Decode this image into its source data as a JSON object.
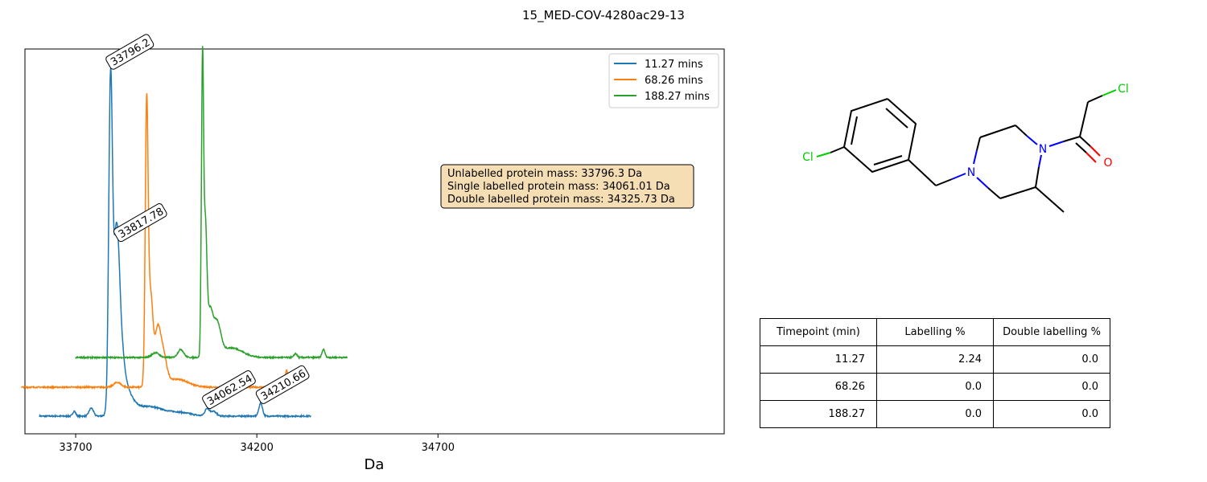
{
  "figure_title": "15_MED-COV-4280ac29-13",
  "chart_data": {
    "type": "line",
    "title": "15_MED-COV-4280ac29-13",
    "xlabel": "Da",
    "ylabel": "",
    "x_ticks": [
      33700,
      34200,
      34700
    ],
    "xlim": [
      33560,
      35490
    ],
    "series": [
      {
        "name": "11.27 mins",
        "color": "#1f77b4",
        "x_range": [
          33600,
          34350
        ],
        "baseline_offset": 0,
        "peaks": [
          {
            "x": 33696,
            "h": 6,
            "w": 4
          },
          {
            "x": 33743,
            "h": 10,
            "w": 6
          },
          {
            "x": 33796.2,
            "h": 390,
            "w": 5
          },
          {
            "x": 33812,
            "h": 150,
            "w": 8
          },
          {
            "x": 33817.78,
            "h": 80,
            "w": 12
          },
          {
            "x": 33835,
            "h": 30,
            "w": 20
          },
          {
            "x": 33900,
            "h": 12,
            "w": 40
          },
          {
            "x": 33990,
            "h": 4,
            "w": 30
          },
          {
            "x": 34062.54,
            "h": 9,
            "w": 6
          },
          {
            "x": 34080,
            "h": 6,
            "w": 8
          },
          {
            "x": 34210.66,
            "h": 16,
            "w": 5
          }
        ]
      },
      {
        "name": "68.26 mins",
        "color": "#ff7f0e",
        "x_range": [
          33550,
          34300
        ],
        "baseline_offset": 36,
        "peaks": [
          {
            "x": 33815,
            "h": 6,
            "w": 10
          },
          {
            "x": 33896,
            "h": 345,
            "w": 4
          },
          {
            "x": 33907,
            "h": 110,
            "w": 6
          },
          {
            "x": 33925,
            "h": 60,
            "w": 8
          },
          {
            "x": 33940,
            "h": 40,
            "w": 10
          },
          {
            "x": 33980,
            "h": 10,
            "w": 30
          },
          {
            "x": 34282,
            "h": 22,
            "w": 3
          }
        ]
      },
      {
        "name": "188.27 mins",
        "color": "#2ca02c",
        "x_range": [
          33700,
          34450
        ],
        "baseline_offset": 73,
        "peaks": [
          {
            "x": 33920,
            "h": 6,
            "w": 10
          },
          {
            "x": 33990,
            "h": 10,
            "w": 8
          },
          {
            "x": 34050,
            "h": 364,
            "w": 3
          },
          {
            "x": 34058,
            "h": 150,
            "w": 4
          },
          {
            "x": 34070,
            "h": 55,
            "w": 8
          },
          {
            "x": 34090,
            "h": 40,
            "w": 10
          },
          {
            "x": 34130,
            "h": 12,
            "w": 30
          },
          {
            "x": 34307,
            "h": 5,
            "w": 4
          },
          {
            "x": 34384,
            "h": 10,
            "w": 4
          }
        ]
      }
    ],
    "annotations": [
      {
        "text": "33796.2",
        "x": 33796.2,
        "series": 0
      },
      {
        "text": "33817.78",
        "x": 33817.78,
        "series": 0
      },
      {
        "text": "34062.54",
        "x": 34062.54,
        "series": 0
      },
      {
        "text": "34210.66",
        "x": 34210.66,
        "series": 0
      }
    ],
    "info_box": [
      "Unlabelled protein mass: 33796.3 Da",
      "Single labelled protein mass: 34061.01 Da",
      "Double labelled protein mass: 34325.73 Da"
    ],
    "legend_position": "top-right",
    "grid": false
  },
  "molecule": {
    "atoms": [
      "Cl",
      "N",
      "N",
      "Cl",
      "O"
    ],
    "colors": {
      "Cl": "#00cc00",
      "N": "#0000ff",
      "O": "#ff0000"
    }
  },
  "table": {
    "headers": [
      "Timepoint (min)",
      "Labelling %",
      "Double labelling %"
    ],
    "rows": [
      [
        "11.27",
        "2.24",
        "0.0"
      ],
      [
        "68.26",
        "0.0",
        "0.0"
      ],
      [
        "188.27",
        "0.0",
        "0.0"
      ]
    ]
  }
}
